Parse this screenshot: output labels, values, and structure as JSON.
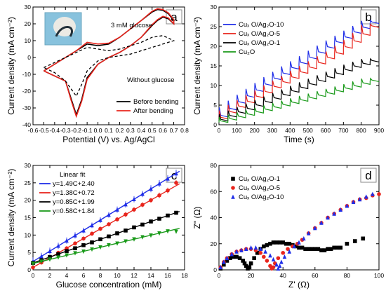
{
  "chart_data": [
    {
      "type": "line",
      "panel": "a",
      "xlabel": "Potential (V) vs. Ag/AgCl",
      "ylabel": "Current density (mA cm⁻²)",
      "xlim": [
        -0.6,
        0.8
      ],
      "ylim": [
        -40,
        30
      ],
      "xticks": [
        "-0.6",
        "-0.5",
        "-0.4",
        "-0.3",
        "-0.2",
        "-0.1",
        "0.0",
        "0.1",
        "0.2",
        "0.3",
        "0.4",
        "0.5",
        "0.6",
        "0.7",
        "0.8"
      ],
      "yticks": [
        "-40",
        "-30",
        "-20",
        "-10",
        "0",
        "10",
        "20",
        "30"
      ],
      "legend": [
        "Before bending",
        "After bending"
      ],
      "annotations": [
        "3 mM glucose",
        "Without glucose"
      ],
      "inset": "photo of bent electrode",
      "colors": {
        "before": "#000000",
        "after": "#e8241c",
        "without": "#000000"
      },
      "series": [
        {
          "name": "Before bending",
          "x": [
            -0.5,
            -0.4,
            -0.3,
            -0.2,
            -0.1,
            0.0,
            0.1,
            0.2,
            0.3,
            0.4,
            0.5,
            0.55,
            0.6,
            0.65,
            0.7,
            0.7,
            0.65,
            0.6,
            0.55,
            0.5,
            0.4,
            0.3,
            0.2,
            0.1,
            0.0,
            -0.1,
            -0.15,
            -0.2,
            -0.25,
            -0.3,
            -0.4,
            -0.5
          ],
          "y": [
            -8,
            -4,
            0,
            4,
            8,
            7,
            8,
            12,
            17,
            22,
            27,
            28.5,
            28,
            26,
            22,
            20,
            23,
            24,
            22,
            19,
            12,
            7,
            3,
            0,
            -4,
            -12,
            -25,
            -34,
            -24,
            -14,
            -11,
            -8
          ]
        },
        {
          "name": "After bending",
          "x": [
            -0.5,
            -0.4,
            -0.3,
            -0.2,
            -0.1,
            0.0,
            0.1,
            0.2,
            0.3,
            0.4,
            0.5,
            0.55,
            0.6,
            0.65,
            0.7,
            0.7,
            0.65,
            0.6,
            0.55,
            0.5,
            0.4,
            0.3,
            0.2,
            0.1,
            0.0,
            -0.1,
            -0.15,
            -0.2,
            -0.25,
            -0.3,
            -0.4,
            -0.5
          ],
          "y": [
            -8,
            -4,
            0,
            4,
            9,
            8,
            8.5,
            12,
            17,
            22,
            27.5,
            29,
            28.5,
            26.5,
            22.5,
            20,
            23.5,
            24.5,
            22.5,
            19.5,
            12,
            7,
            3,
            0,
            -4,
            -13,
            -26,
            -35,
            -25,
            -14,
            -11,
            -8
          ]
        },
        {
          "name": "Without glucose",
          "style": "dashed",
          "x": [
            -0.5,
            -0.4,
            -0.3,
            -0.2,
            -0.1,
            0.0,
            0.1,
            0.2,
            0.3,
            0.4,
            0.5,
            0.6,
            0.7,
            0.7,
            0.6,
            0.5,
            0.4,
            0.3,
            0.2,
            0.1,
            0.0,
            -0.1,
            -0.15,
            -0.2,
            -0.3,
            -0.4,
            -0.5
          ],
          "y": [
            -6,
            -3,
            0,
            3,
            6,
            5,
            4,
            5,
            7,
            9,
            12,
            13,
            10,
            10,
            8,
            6,
            4,
            2,
            1,
            0,
            -2,
            -8,
            -16,
            -23,
            -14,
            -9,
            -6
          ]
        }
      ]
    },
    {
      "type": "line",
      "panel": "b",
      "xlabel": "Time (s)",
      "ylabel": "Current density (mA cm⁻²)",
      "xlim": [
        0,
        900
      ],
      "ylim": [
        0,
        30
      ],
      "xticks": [
        "0",
        "100",
        "200",
        "300",
        "400",
        "500",
        "600",
        "700",
        "800",
        "900"
      ],
      "yticks": [
        "0",
        "5",
        "10",
        "15",
        "20",
        "25",
        "30"
      ],
      "legend": [
        "Cuₓ O/Ag₂O-10",
        "Cuₓ O/Ag₂O-5",
        "Cuₓ O/Ag₂O-1",
        "Cu₂O"
      ],
      "colors": {
        "s10": "#1f2ee8",
        "s5": "#e8241c",
        "s1": "#000000",
        "cu2o": "#1a9a1a"
      },
      "step_interval_s": 50,
      "series": [
        {
          "name": "Cuₓ O/Ag₂O-10",
          "step_values": [
            2,
            3.8,
            5.5,
            7.0,
            8.5,
            10.0,
            11.5,
            12.8,
            14.2,
            15.5,
            16.8,
            18.2,
            19.5,
            20.8,
            22.0,
            23.3,
            24.5,
            25.8
          ]
        },
        {
          "name": "Cuₓ O/Ag₂O-5",
          "step_values": [
            1.5,
            3.0,
            4.4,
            5.6,
            6.9,
            8.1,
            9.4,
            10.6,
            11.8,
            13.1,
            14.3,
            15.5,
            16.8,
            18.0,
            19.5,
            21.0,
            22.8,
            24.8
          ]
        },
        {
          "name": "Cuₓ O/Ag₂O-1",
          "step_values": [
            1.0,
            2.0,
            2.9,
            3.8,
            4.7,
            5.6,
            6.5,
            7.4,
            8.3,
            9.2,
            10.1,
            11.0,
            11.9,
            12.8,
            13.7,
            14.6,
            15.3,
            16.0
          ]
        },
        {
          "name": "Cu₂O",
          "step_values": [
            0.6,
            1.2,
            1.8,
            2.4,
            3.0,
            3.6,
            4.2,
            4.8,
            5.4,
            6.0,
            6.6,
            7.2,
            7.8,
            8.4,
            9.0,
            9.6,
            10.3,
            11.0
          ]
        }
      ]
    },
    {
      "type": "scatter",
      "panel": "c",
      "xlabel": "Glucose concentration (mM)",
      "ylabel": "Current density (mA cm⁻²)",
      "xlim": [
        0,
        18
      ],
      "ylim": [
        0,
        30
      ],
      "xticks": [
        "0",
        "2",
        "4",
        "6",
        "8",
        "10",
        "12",
        "14",
        "16",
        "18"
      ],
      "yticks": [
        "0",
        "5",
        "10",
        "15",
        "20",
        "25",
        "30"
      ],
      "legend_title": "Linear fit",
      "legend": [
        "y=1.49C+2.40",
        "y=1.38C+0.72",
        "y=0.85C+1.99",
        "y=0.58C+1.84"
      ],
      "colors": {
        "s10": "#1f2ee8",
        "s5": "#e8241c",
        "s1": "#000000",
        "cu2o": "#1a9a1a"
      },
      "x": [
        0,
        1,
        2,
        3,
        4,
        5,
        6,
        7,
        8,
        9,
        10,
        11,
        12,
        13,
        14,
        15,
        16,
        17
      ],
      "series": [
        {
          "name": "y=1.49C+2.40",
          "marker": "triangle-up",
          "slope": 1.49,
          "intercept": 2.4,
          "y": [
            2.4,
            3.9,
            5.4,
            6.9,
            8.4,
            9.9,
            11.3,
            12.8,
            14.3,
            15.8,
            17.3,
            18.8,
            20.3,
            21.8,
            23.3,
            24.8,
            26.2,
            27.7
          ],
          "err": [
            1.2,
            1.0,
            1.0,
            0.9,
            0.9,
            0.9,
            0.8,
            0.8,
            0.8,
            0.8,
            0.9,
            0.9,
            0.9,
            0.9,
            1.0,
            1.0,
            1.0,
            1.1
          ]
        },
        {
          "name": "y=1.38C+0.72",
          "marker": "circle",
          "slope": 1.38,
          "intercept": 0.72,
          "y": [
            0.7,
            2.1,
            3.5,
            4.9,
            6.2,
            7.6,
            9.0,
            10.4,
            11.8,
            13.1,
            14.5,
            15.9,
            17.3,
            18.7,
            20.0,
            21.4,
            22.8,
            25.0
          ],
          "err": [
            0.6,
            0.6,
            0.6,
            0.6,
            0.6,
            0.6,
            0.6,
            0.6,
            0.6,
            0.6,
            0.6,
            0.7,
            0.7,
            0.7,
            0.7,
            0.8,
            0.8,
            0.8
          ]
        },
        {
          "name": "y=0.85C+1.99",
          "marker": "square",
          "slope": 0.85,
          "intercept": 1.99,
          "y": [
            2.0,
            2.8,
            3.7,
            4.5,
            5.4,
            6.2,
            7.1,
            7.9,
            8.8,
            9.6,
            10.5,
            11.3,
            12.2,
            13.0,
            13.9,
            14.7,
            15.6,
            16.4
          ],
          "err": [
            0.3,
            0.3,
            0.3,
            0.3,
            0.3,
            0.3,
            0.3,
            0.3,
            0.3,
            0.3,
            0.3,
            0.3,
            0.3,
            0.3,
            0.3,
            0.3,
            0.3,
            0.3
          ]
        },
        {
          "name": "y=0.58C+1.84",
          "marker": "triangle-down",
          "slope": 0.58,
          "intercept": 1.84,
          "y": [
            1.8,
            2.4,
            3.0,
            3.6,
            4.2,
            4.8,
            5.3,
            5.9,
            6.5,
            7.1,
            7.6,
            8.2,
            8.8,
            9.4,
            9.9,
            10.5,
            11.1,
            11.0
          ],
          "err": [
            0.2,
            0.2,
            0.2,
            0.2,
            0.2,
            0.2,
            0.2,
            0.2,
            0.2,
            0.2,
            0.2,
            0.2,
            0.2,
            0.2,
            0.2,
            0.2,
            0.2,
            0.2
          ]
        }
      ]
    },
    {
      "type": "scatter",
      "panel": "d",
      "xlabel": "Z' (Ω)",
      "ylabel": "Z\" (Ω)",
      "xlim": [
        0,
        100
      ],
      "ylim": [
        0,
        80
      ],
      "xticks": [
        "0",
        "20",
        "40",
        "60",
        "80",
        "100"
      ],
      "yticks": [
        "0",
        "20",
        "40",
        "60",
        "80"
      ],
      "legend": [
        "Cuₓ O/Ag₂O-1",
        "Cuₓ O/Ag₂O-5",
        "Cuₓ O/Ag₂O-10"
      ],
      "colors": {
        "s1": "#000000",
        "s5": "#e8241c",
        "s10": "#1f2ee8"
      },
      "series": [
        {
          "name": "Cuₓ O/Ag₂O-1",
          "marker": "square",
          "x": [
            1,
            3,
            5,
            7,
            9,
            11,
            13,
            15,
            16,
            17,
            18,
            19,
            20,
            22,
            24,
            26,
            28,
            30,
            32,
            34,
            36,
            38,
            40,
            42,
            44,
            46,
            48,
            50,
            52,
            54,
            56,
            58,
            60,
            62,
            64,
            66,
            68,
            70,
            72,
            74,
            76,
            80,
            85,
            90
          ],
          "y": [
            1,
            4,
            7,
            9,
            10,
            10,
            9,
            7,
            5,
            3,
            1,
            2,
            5,
            9,
            13,
            16,
            18,
            19,
            20,
            21,
            21,
            21,
            21,
            20,
            20,
            19,
            18,
            17,
            17,
            16,
            16,
            16,
            16,
            16,
            15,
            15,
            16,
            16,
            17,
            17,
            17,
            20,
            22,
            24
          ]
        },
        {
          "name": "Cuₓ O/Ag₂O-5",
          "marker": "circle",
          "x": [
            1,
            3,
            5,
            8,
            11,
            14,
            17,
            20,
            23,
            26,
            28,
            30,
            32,
            33,
            34,
            35,
            37,
            40,
            43,
            46,
            49,
            52,
            56,
            60,
            64,
            68,
            72,
            76,
            80,
            84,
            88,
            92,
            96,
            100
          ],
          "y": [
            2,
            6,
            9,
            12,
            14,
            15,
            16,
            16,
            15,
            13,
            10,
            7,
            3,
            1,
            2,
            5,
            9,
            13,
            16,
            18,
            20,
            23,
            28,
            32,
            36,
            40,
            43,
            46,
            49,
            52,
            54,
            55,
            57,
            58
          ]
        },
        {
          "name": "Cuₓ O/Ag₂O-10",
          "marker": "triangle-up",
          "x": [
            1,
            3,
            5,
            8,
            11,
            14,
            17,
            20,
            23,
            26,
            29,
            32,
            34,
            36,
            37,
            38,
            39,
            41,
            44,
            47,
            50,
            53,
            56,
            60,
            64,
            68,
            72,
            76,
            80,
            84,
            88,
            92,
            96
          ],
          "y": [
            2,
            6,
            9,
            12,
            14,
            15,
            16,
            17,
            17,
            16,
            14,
            11,
            8,
            4,
            1,
            3,
            6,
            10,
            14,
            18,
            21,
            24,
            28,
            32,
            36,
            40,
            43,
            46,
            49,
            52,
            54,
            56,
            58
          ]
        }
      ]
    }
  ]
}
